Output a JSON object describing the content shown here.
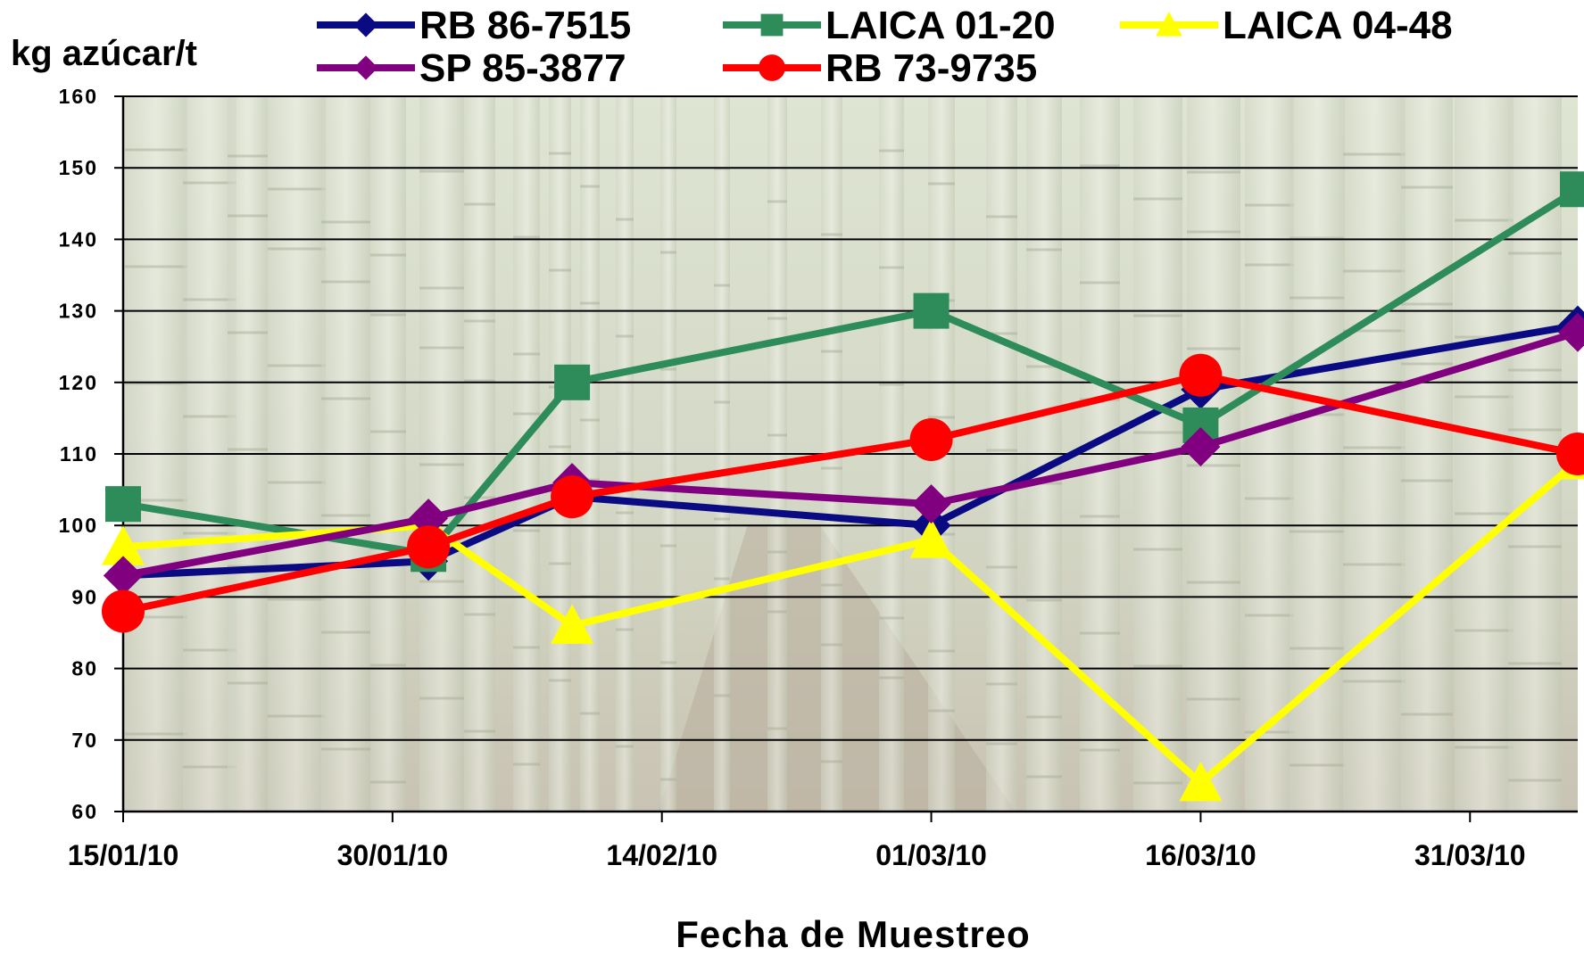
{
  "chart_data": {
    "type": "line",
    "ylabel": "kg azúcar/t",
    "xlabel": "Fecha de Muestreo",
    "ylim": [
      60,
      160
    ],
    "yticks": [
      60,
      70,
      80,
      90,
      100,
      110,
      120,
      130,
      140,
      150,
      160
    ],
    "xlim_days": [
      0,
      81
    ],
    "xticks": [
      {
        "label": "15/01/10",
        "day": 0
      },
      {
        "label": "30/01/10",
        "day": 15
      },
      {
        "label": "14/02/10",
        "day": 30
      },
      {
        "label": "01/03/10",
        "day": 45
      },
      {
        "label": "16/03/10",
        "day": 60
      },
      {
        "label": "31/03/10",
        "day": 75
      }
    ],
    "grid": true,
    "legend_position": "top",
    "background": "sugarcane field photograph",
    "series": [
      {
        "name": "RB 86-7515",
        "color": "#0a0a82",
        "marker": "diamond",
        "points": [
          [
            "15/01/10",
            93
          ],
          [
            "01/02/10",
            95
          ],
          [
            "09/02/10",
            104
          ],
          [
            "01/03/10",
            100
          ],
          [
            "16/03/10",
            119
          ],
          [
            "06/04/10",
            128
          ]
        ]
      },
      {
        "name": "LAICA 01-20",
        "color": "#2e8b5a",
        "marker": "square",
        "points": [
          [
            "15/01/10",
            103
          ],
          [
            "01/02/10",
            96
          ],
          [
            "09/02/10",
            120
          ],
          [
            "01/03/10",
            130
          ],
          [
            "16/03/10",
            114
          ],
          [
            "06/04/10",
            147
          ]
        ]
      },
      {
        "name": "LAICA 04-48",
        "color": "#ffff00",
        "marker": "triangle",
        "points": [
          [
            "15/01/10",
            97
          ],
          [
            "01/02/10",
            100
          ],
          [
            "09/02/10",
            86
          ],
          [
            "01/03/10",
            98
          ],
          [
            "16/03/10",
            64
          ],
          [
            "06/04/10",
            109
          ]
        ]
      },
      {
        "name": "SP 85-3877",
        "color": "#800080",
        "marker": "diamond",
        "points": [
          [
            "15/01/10",
            93
          ],
          [
            "01/02/10",
            101
          ],
          [
            "09/02/10",
            106
          ],
          [
            "01/03/10",
            103
          ],
          [
            "16/03/10",
            111
          ],
          [
            "06/04/10",
            127
          ]
        ]
      },
      {
        "name": "RB 73-9735",
        "color": "#ff0000",
        "marker": "circle",
        "points": [
          [
            "15/01/10",
            88
          ],
          [
            "01/02/10",
            97
          ],
          [
            "09/02/10",
            104
          ],
          [
            "01/03/10",
            112
          ],
          [
            "16/03/10",
            121
          ],
          [
            "06/04/10",
            110
          ]
        ]
      }
    ]
  }
}
